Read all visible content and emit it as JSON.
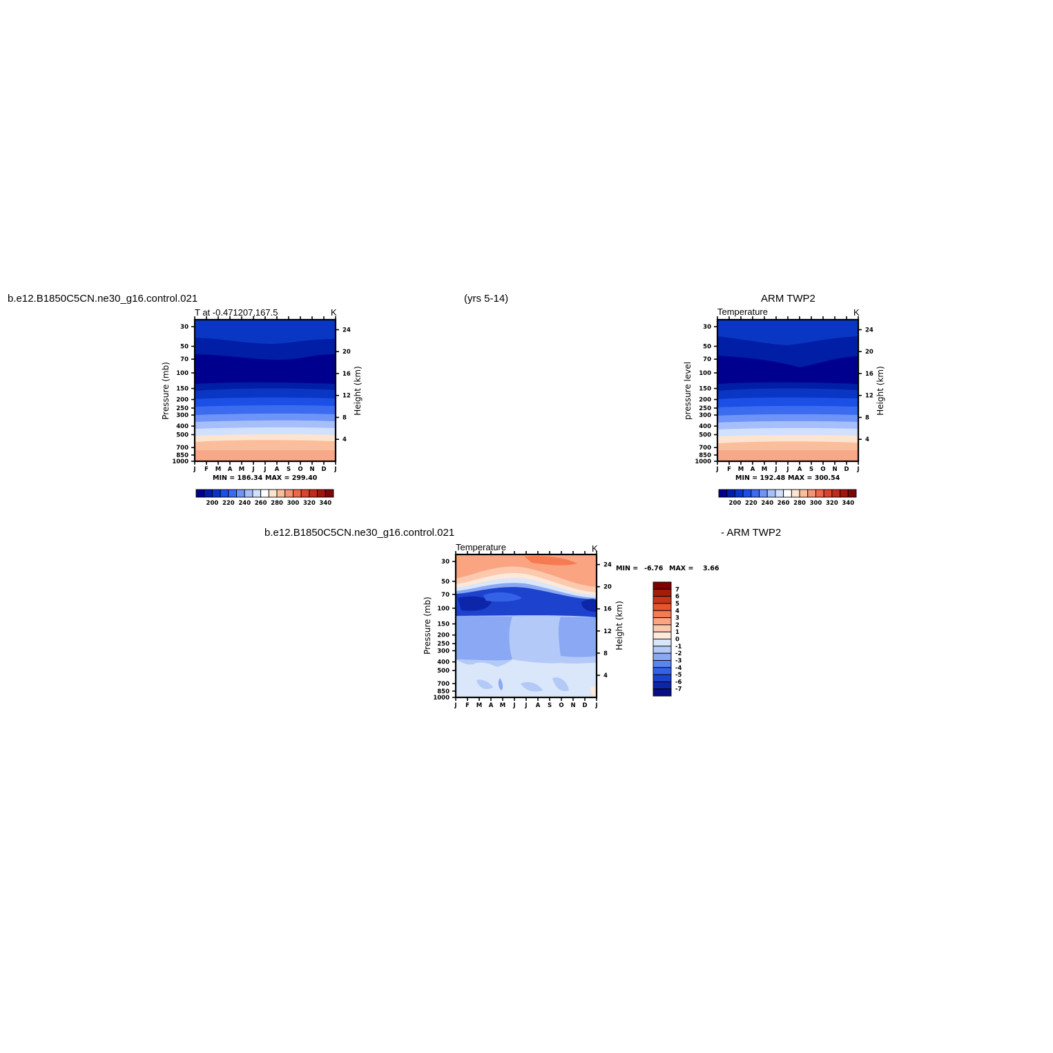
{
  "header": {
    "left_title": "b.e12.B1850C5CN.ne30_g16.control.021",
    "center_title": "(yrs 5-14)",
    "right_title": "ARM TWP2",
    "diff_left_title": "b.e12.B1850C5CN.ne30_g16.control.021",
    "diff_right_title": "- ARM TWP2"
  },
  "colorbar_abs": {
    "labels": [
      "200",
      "220",
      "240",
      "260",
      "280",
      "300",
      "320",
      "340"
    ],
    "colors": [
      "#00008f",
      "#001fa6",
      "#0a36c4",
      "#1c4fe6",
      "#3b6cf0",
      "#6f94f7",
      "#a6bffb",
      "#d1e0fc",
      "#ffffff",
      "#fde4cf",
      "#fbbe9d",
      "#f69373",
      "#ee6847",
      "#d9462b",
      "#c12b1a",
      "#9e170e",
      "#800708"
    ]
  },
  "colorbar_diff": {
    "labels": [
      "7",
      "6",
      "5",
      "4",
      "3",
      "2",
      "1",
      "0",
      "-1",
      "-2",
      "-3",
      "-4",
      "-5",
      "-6",
      "-7"
    ],
    "colors": [
      "#7e0000",
      "#a51d0a",
      "#c8351b",
      "#e9542d",
      "#f67b52",
      "#fba482",
      "#fcc9ad",
      "#fde8da",
      "#dae6f9",
      "#b3c9f8",
      "#8aa8f3",
      "#5a85ee",
      "#3462e6",
      "#1d42cd",
      "#0d26a9",
      "#060f86"
    ]
  },
  "chart_data": [
    {
      "type": "heatmap",
      "title": "b.e12.B1850C5CN.ne30_g16.control.021",
      "subtitle_left": "T at -0.471207,167.5",
      "units": "K",
      "ylabel_left": "Pressure (mb)",
      "ylabel_right": "Height (km)",
      "x_ticks": [
        "J",
        "F",
        "M",
        "A",
        "M",
        "J",
        "J",
        "A",
        "S",
        "O",
        "N",
        "D",
        "J"
      ],
      "y_ticks_pressure": [
        30,
        50,
        70,
        100,
        150,
        200,
        250,
        300,
        400,
        500,
        700,
        850,
        1000
      ],
      "y_ticks_height_km": [
        24,
        20,
        16,
        12,
        8,
        4
      ],
      "ylim_pressure": [
        1000,
        25
      ],
      "min": 186.34,
      "max": 299.4,
      "min_text": "MIN = 186.34",
      "max_text": "MAX = 299.40",
      "approx_profile": [
        {
          "pressure": 25,
          "value": 210
        },
        {
          "pressure": 40,
          "value": 205
        },
        {
          "pressure": 60,
          "value": 195
        },
        {
          "pressure": 100,
          "value": 190
        },
        {
          "pressure": 150,
          "value": 205
        },
        {
          "pressure": 200,
          "value": 220
        },
        {
          "pressure": 300,
          "value": 240
        },
        {
          "pressure": 400,
          "value": 255
        },
        {
          "pressure": 500,
          "value": 265
        },
        {
          "pressure": 700,
          "value": 285
        },
        {
          "pressure": 1000,
          "value": 299
        }
      ]
    },
    {
      "type": "heatmap",
      "title": "ARM TWP2",
      "subtitle_left": "Temperature",
      "units": "K",
      "ylabel_left": "pressure level",
      "ylabel_right": "Height (km)",
      "x_ticks": [
        "J",
        "F",
        "M",
        "A",
        "M",
        "J",
        "J",
        "A",
        "S",
        "O",
        "N",
        "D",
        "J"
      ],
      "y_ticks_pressure": [
        30,
        50,
        70,
        100,
        150,
        200,
        250,
        300,
        400,
        500,
        700,
        850,
        1000
      ],
      "y_ticks_height_km": [
        24,
        20,
        16,
        12,
        8,
        4
      ],
      "ylim_pressure": [
        1000,
        25
      ],
      "min": 192.48,
      "max": 300.54,
      "min_text": "MIN = 192.48",
      "max_text": "MAX = 300.54"
    },
    {
      "type": "heatmap",
      "title": "b.e12.B1850C5CN.ne30_g16.control.021 - ARM TWP2",
      "subtitle_left": "Temperature",
      "units": "K",
      "ylabel_left": "Pressure (mb)",
      "ylabel_right": "Height (km)",
      "x_ticks": [
        "J",
        "F",
        "M",
        "A",
        "M",
        "J",
        "J",
        "A",
        "S",
        "O",
        "N",
        "D",
        "J"
      ],
      "y_ticks_pressure": [
        30,
        50,
        70,
        100,
        150,
        200,
        250,
        300,
        400,
        500,
        700,
        850,
        1000
      ],
      "y_ticks_height_km": [
        24,
        20,
        16,
        12,
        8,
        4
      ],
      "ylim_pressure": [
        1000,
        25
      ],
      "min": -6.76,
      "max": 3.66,
      "min_label": "MIN =",
      "min_value": "-6.76",
      "max_label": "MAX =",
      "max_value": "3.66"
    }
  ]
}
